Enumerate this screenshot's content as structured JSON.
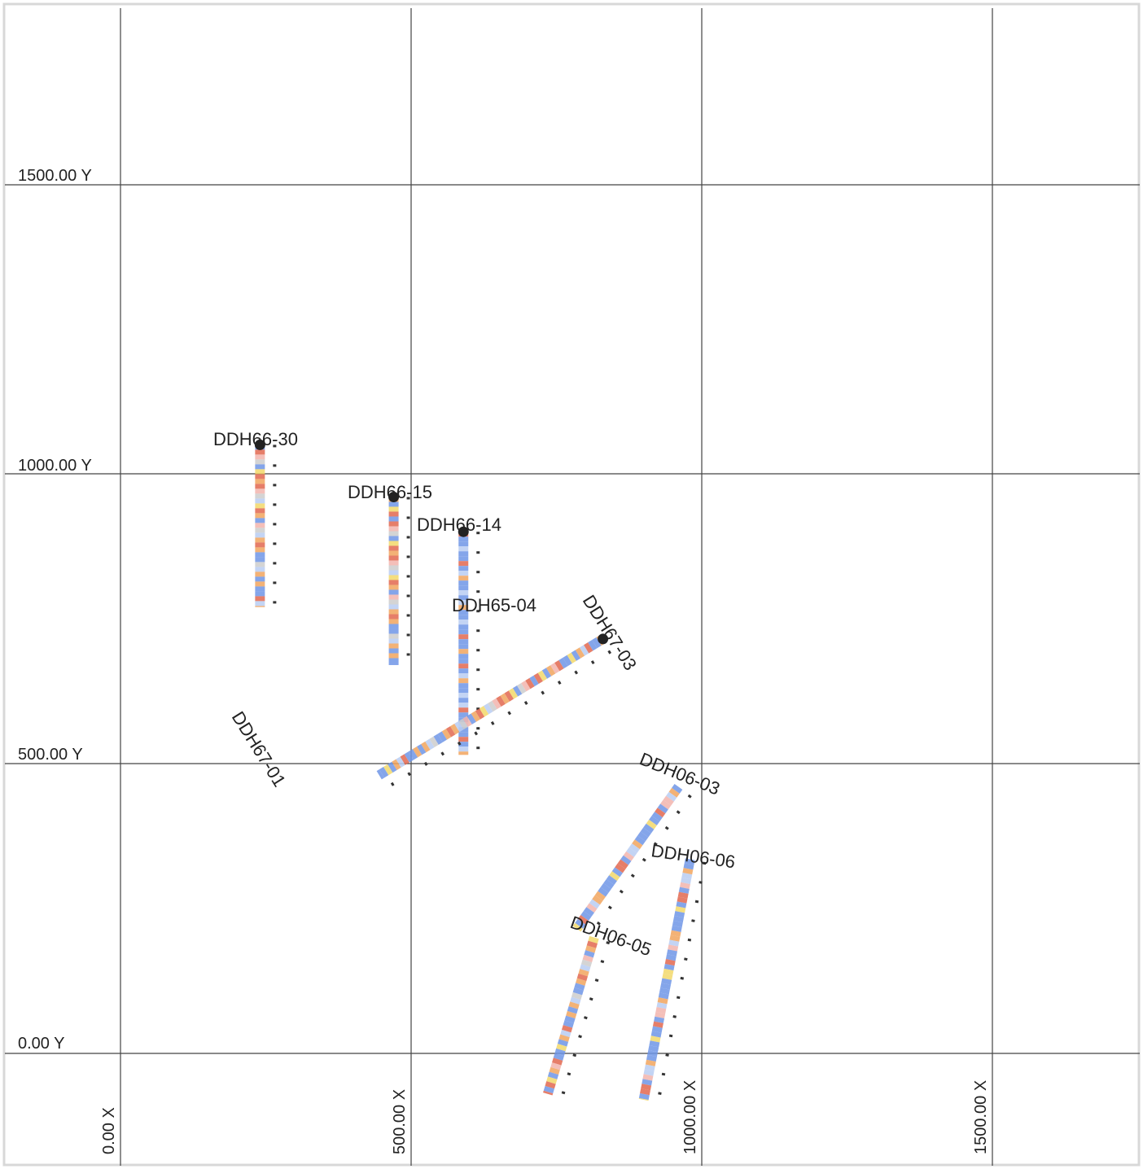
{
  "colors": {
    "blue": "#6f95e6",
    "lightblue": "#b8cdf2",
    "red": "#e2674f",
    "orange": "#f1a45e",
    "yellow": "#f2d86a",
    "pink": "#f2b4ad",
    "gray": "#cccccc"
  },
  "axes": {
    "y_labels": [
      "1500.00 Y",
      "1000.00 Y",
      "500.00 Y",
      "0.00 Y"
    ],
    "x_labels": [
      "0.00 X",
      "500.00 X",
      "1000.00 X",
      "1500.00 X"
    ]
  },
  "holes": [
    {
      "id": "DDH66-30",
      "collar": [
        240,
        1050
      ],
      "toe": [
        240,
        770
      ],
      "pattern": "mixed",
      "collar_marker": true
    },
    {
      "id": "DDH66-15",
      "collar": [
        470,
        960
      ],
      "toe": [
        470,
        670
      ],
      "pattern": "mixed",
      "collar_marker": true
    },
    {
      "id": "DDH66-14",
      "collar": [
        590,
        900
      ],
      "toe": [
        590,
        515
      ],
      "pattern": "blue",
      "collar_marker": true
    },
    {
      "id": "DDH65-04",
      "collar": [
        590,
        770
      ],
      "toe": [
        590,
        770
      ],
      "pattern": "none",
      "collar_marker": false
    },
    {
      "id": "DDH67-03",
      "collar": [
        830,
        715
      ],
      "toe": [
        445,
        480
      ],
      "pattern": "mixed",
      "collar_marker": true
    },
    {
      "id": "DDH67-01",
      "collar": [
        210,
        505
      ],
      "toe": [
        210,
        500
      ],
      "pattern": "none",
      "collar_marker": false
    },
    {
      "id": "DDH06-03",
      "collar": [
        960,
        460
      ],
      "toe": [
        785,
        215
      ],
      "pattern": "blue-mixed",
      "collar_marker": false
    },
    {
      "id": "DDH06-06",
      "collar": [
        980,
        335
      ],
      "toe": [
        900,
        -80
      ],
      "pattern": "blue-mixed",
      "collar_marker": false
    },
    {
      "id": "DDH06-05",
      "collar": [
        815,
        200
      ],
      "toe": [
        735,
        -70
      ],
      "pattern": "mixed",
      "collar_marker": false
    }
  ]
}
